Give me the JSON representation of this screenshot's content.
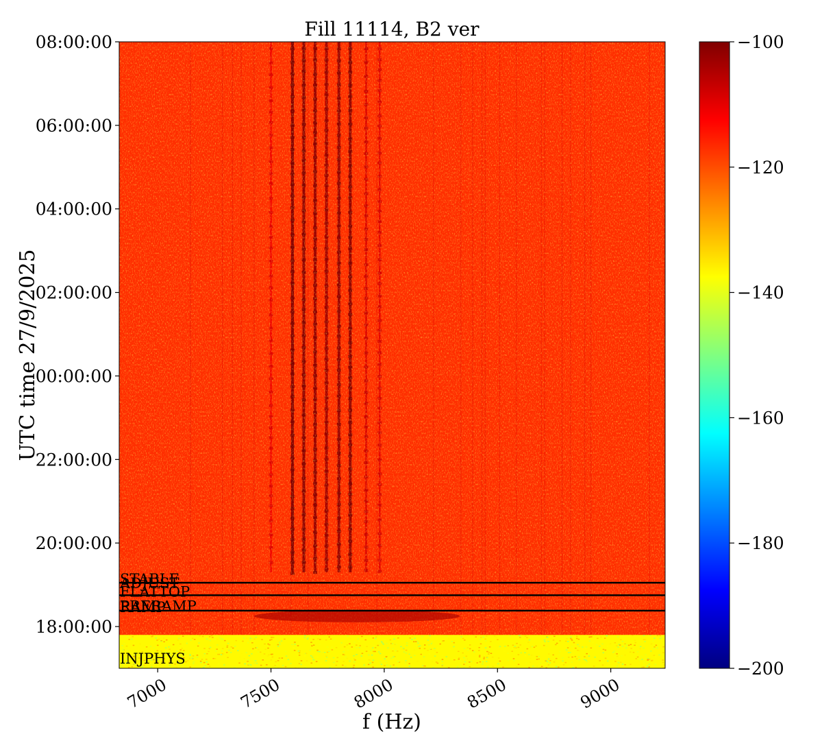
{
  "chart_data": {
    "type": "heatmap",
    "title": "Fill 11114, B2 ver",
    "xlabel": "f (Hz)",
    "ylabel": "UTC time 27/9/2025",
    "xlim": [
      6830,
      9240
    ],
    "ylim": [
      -7.0,
      8.0
    ],
    "x_ticks": [
      {
        "value": 7000,
        "label": "7000"
      },
      {
        "value": 7500,
        "label": "7500"
      },
      {
        "value": 8000,
        "label": "8000"
      },
      {
        "value": 8500,
        "label": "8500"
      },
      {
        "value": 9000,
        "label": "9000"
      }
    ],
    "y_ticks": [
      {
        "value": 8,
        "label": "08:00:00"
      },
      {
        "value": 6,
        "label": "06:00:00"
      },
      {
        "value": 4,
        "label": "04:00:00"
      },
      {
        "value": 2,
        "label": "02:00:00"
      },
      {
        "value": 0,
        "label": "00:00:00"
      },
      {
        "value": -2,
        "label": "22:00:00"
      },
      {
        "value": -4,
        "label": "20:00:00"
      },
      {
        "value": -6,
        "label": "18:00:00"
      }
    ],
    "colorbar": {
      "colormap": "jet",
      "range": [
        -200,
        -100
      ],
      "ticks": [
        {
          "value": -100,
          "label": "−100"
        },
        {
          "value": -120,
          "label": "−120"
        },
        {
          "value": -140,
          "label": "−140"
        },
        {
          "value": -160,
          "label": "−160"
        },
        {
          "value": -180,
          "label": "−180"
        },
        {
          "value": -200,
          "label": "−200"
        }
      ]
    },
    "background_level": -117,
    "low_region": {
      "y_from": -7.0,
      "y_to": -6.2,
      "level": -137
    },
    "harmonic_lines": [
      {
        "f": 7595,
        "level": -101
      },
      {
        "f": 7645,
        "level": -102
      },
      {
        "f": 7695,
        "level": -103
      },
      {
        "f": 7745,
        "level": -104
      },
      {
        "f": 7800,
        "level": -103
      },
      {
        "f": 7850,
        "level": -102
      },
      {
        "f": 7500,
        "level": -111
      },
      {
        "f": 7920,
        "level": -109
      },
      {
        "f": 7980,
        "level": -110
      }
    ],
    "mode_markers": [
      {
        "label": "STABLE",
        "y": -4.95,
        "line": true
      },
      {
        "label": "ADJUST",
        "y": -5.05,
        "line": false
      },
      {
        "label": "FLATTOP",
        "y": -5.25,
        "line": true
      },
      {
        "label": "PRERAMP",
        "y": -5.6,
        "line": false
      },
      {
        "label": "RAMP",
        "y": -5.62,
        "line": true
      },
      {
        "label": "INJPHYS",
        "y": -6.85,
        "line": false
      }
    ]
  }
}
